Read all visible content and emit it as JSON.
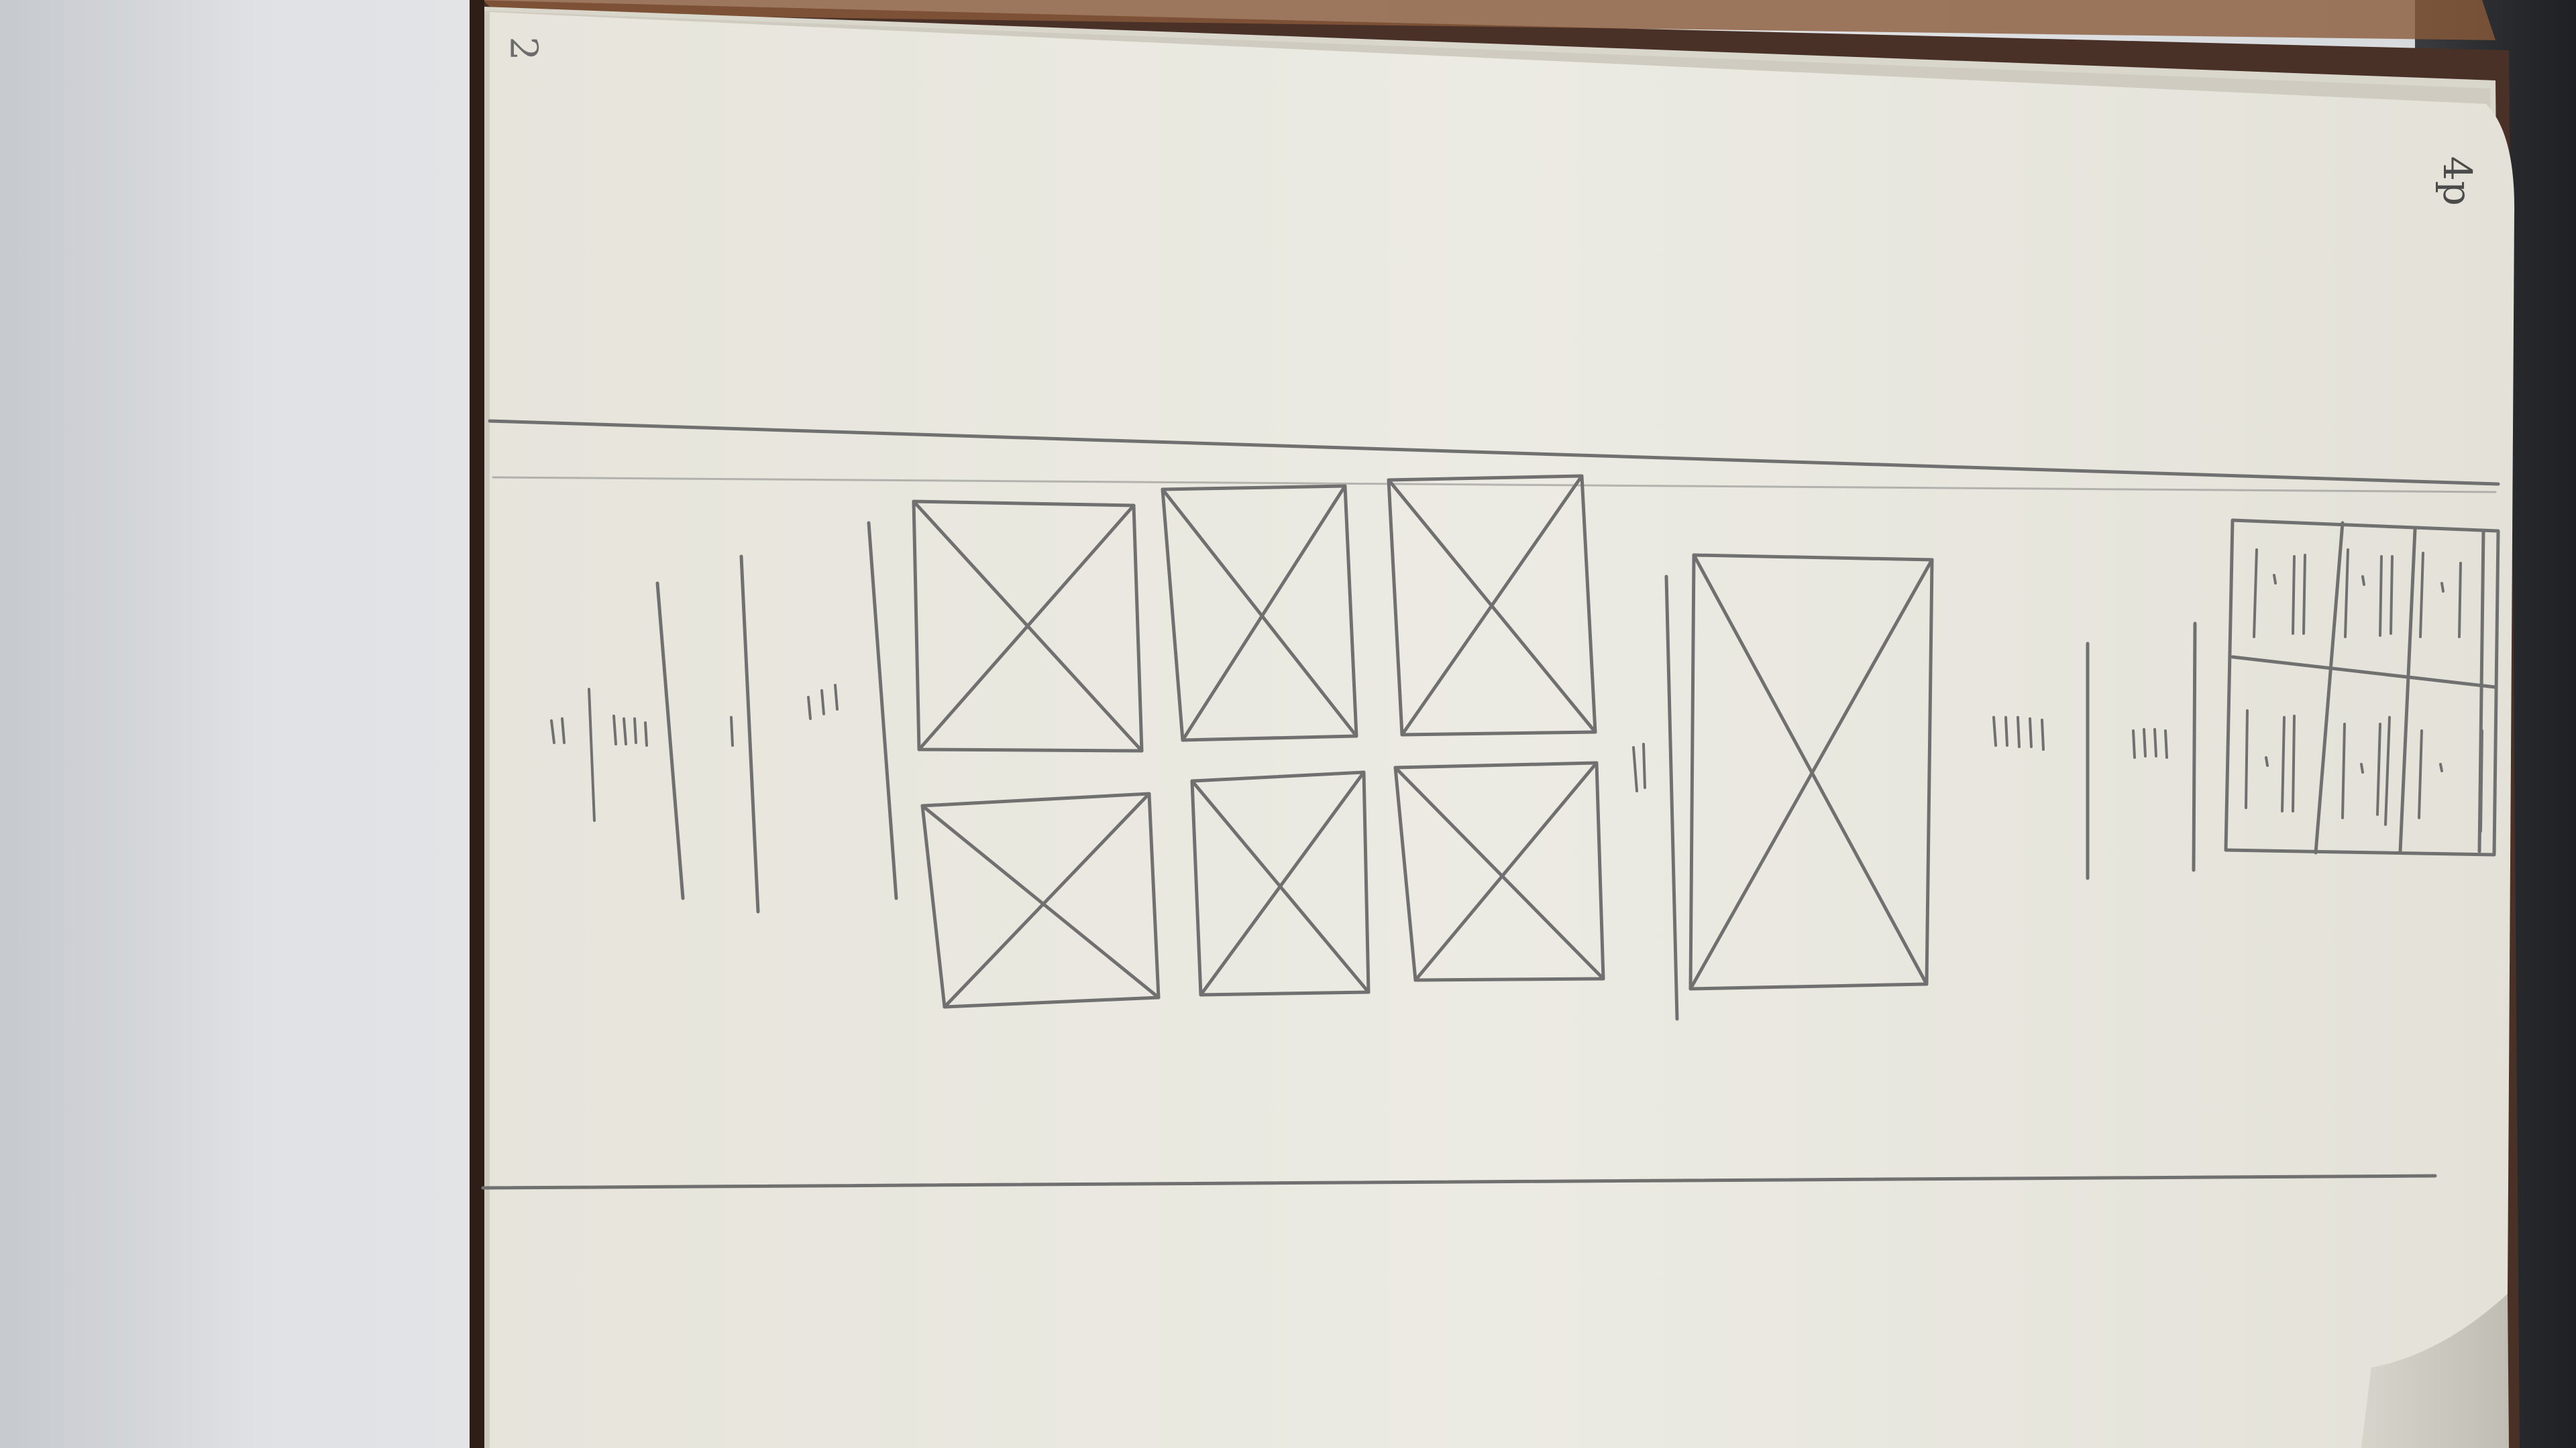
{
  "notebook": {
    "page_number": "2",
    "corner_note": "4p",
    "colors": {
      "paper": "#ebe9e1",
      "pencil": "#707070",
      "cover": "#4a3128",
      "background": "#e2e4e7"
    }
  }
}
